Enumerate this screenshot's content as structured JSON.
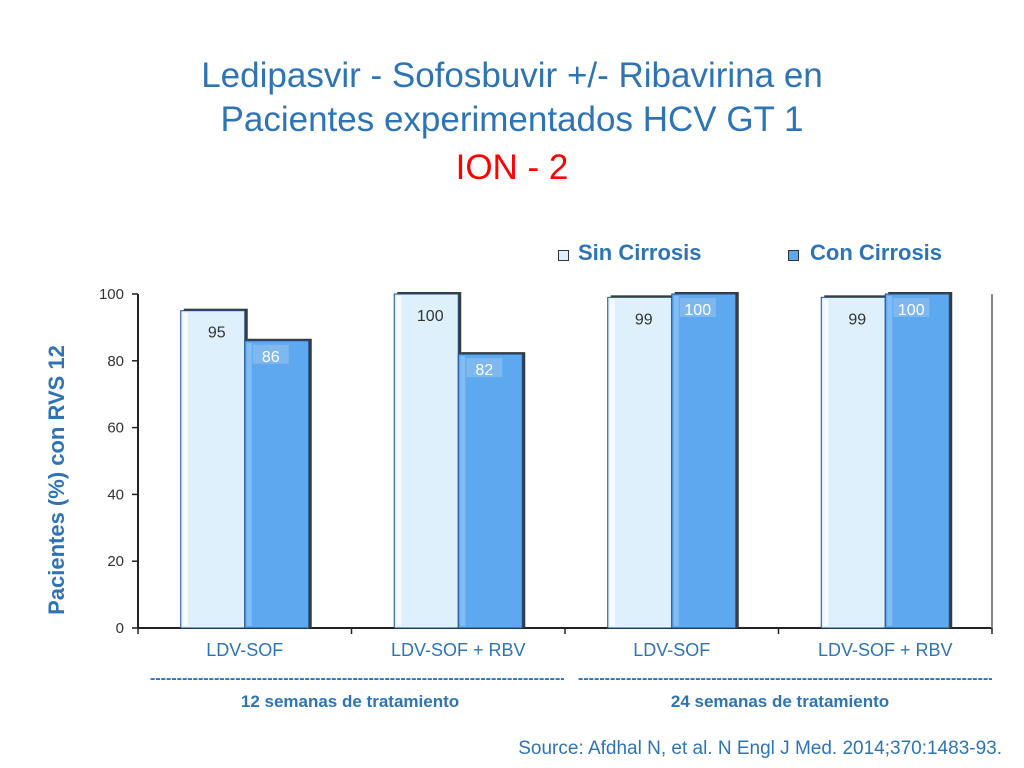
{
  "title": {
    "line1": "Ledipasvir - Sofosbuvir +/- Ribavirina en",
    "line2": "Pacientes  experimentados HCV GT 1",
    "line3": "ION - 2"
  },
  "colors": {
    "title": "#2e74b5",
    "accent": "#ff0000",
    "sin_cirrosis": "#ddf0fb",
    "con_cirrosis": "#5ea8f0"
  },
  "group_labels": {
    "weeks12": "12 semanas de tratamiento",
    "weeks24": "24 semanas de tratamiento"
  },
  "source": "Source: Afdhal N, et al. N Engl J Med. 2014;370:1483-93.",
  "chart_data": {
    "type": "bar",
    "categories": [
      "LDV-SOF",
      "LDV-SOF + RBV",
      "LDV-SOF",
      "LDV-SOF + RBV"
    ],
    "series": [
      {
        "name": "Sin Cirrosis",
        "values": [
          95,
          100,
          99,
          99
        ]
      },
      {
        "name": "Con Cirrosis",
        "values": [
          86,
          82,
          100,
          100
        ]
      }
    ],
    "title": "",
    "xlabel": "",
    "ylabel": "Pacientes (%) con  RVS  12",
    "ylim": [
      0,
      100
    ],
    "yticks": [
      0,
      20,
      40,
      60,
      80,
      100
    ],
    "legend_position": "top-right",
    "grid": false
  }
}
